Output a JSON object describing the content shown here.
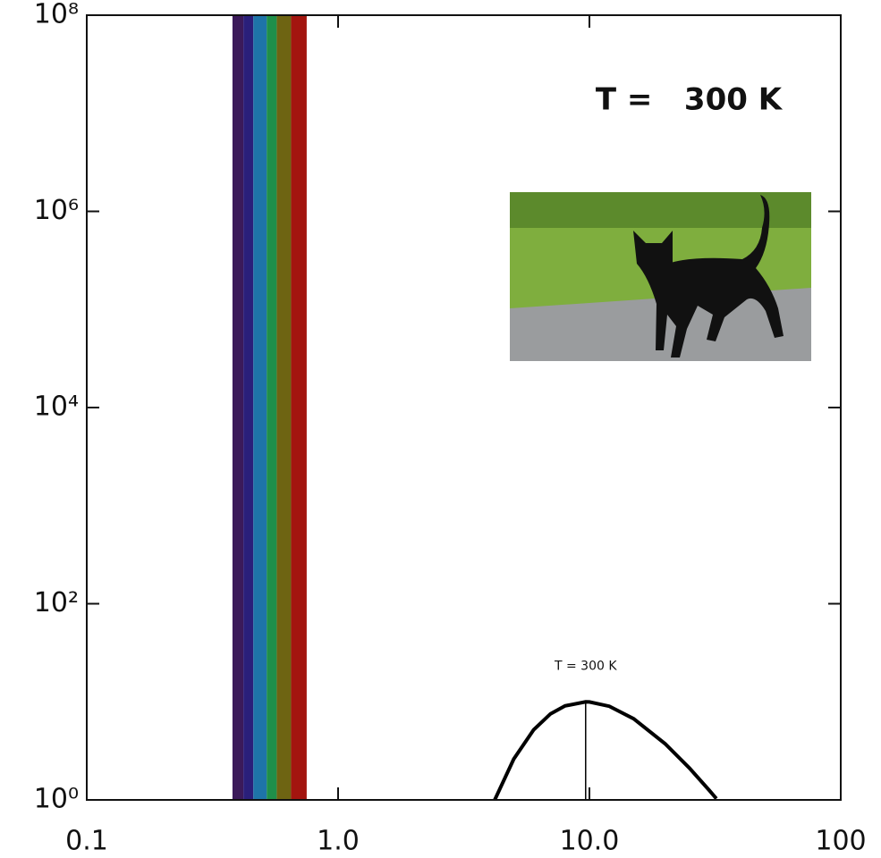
{
  "chart_data": {
    "type": "line",
    "xlog": true,
    "ylog": true,
    "xlim": [
      0.1,
      100
    ],
    "ylim": [
      1,
      100000000
    ],
    "xticks": [
      {
        "value": 0.1,
        "label": "0.1"
      },
      {
        "value": 1,
        "label": "1.0"
      },
      {
        "value": 10,
        "label": "10.0"
      },
      100
    ],
    "yticks": [
      {
        "value": 1,
        "label": "10⁰"
      },
      {
        "value": 100,
        "label": "10²"
      },
      {
        "value": 10000,
        "label": "10⁴"
      },
      {
        "value": 1000000,
        "label": "10⁶"
      },
      {
        "value": 100000000,
        "label": "10⁸"
      }
    ],
    "x": [
      4.2,
      5,
      6,
      7,
      8,
      9.66,
      10,
      12,
      15,
      20,
      25,
      30,
      32
    ],
    "values": [
      1.0,
      2.61,
      5.19,
      7.54,
      9.09,
      10,
      9.97,
      9.01,
      6.72,
      3.74,
      2.11,
      1.25,
      1.03
    ],
    "color": "#000000",
    "peak_x": 9.66,
    "peak_value": 10,
    "band_edges": [
      0.38,
      0.42,
      0.46,
      0.52,
      0.57,
      0.65,
      0.75
    ],
    "band_colors": [
      "#3b1a5a",
      "#2a1f7a",
      "#1e74a8",
      "#1f8f4a",
      "#6e6412",
      "#a3150f"
    ],
    "annotation": "T =   300 K",
    "peak_label": "T = 300 K"
  }
}
